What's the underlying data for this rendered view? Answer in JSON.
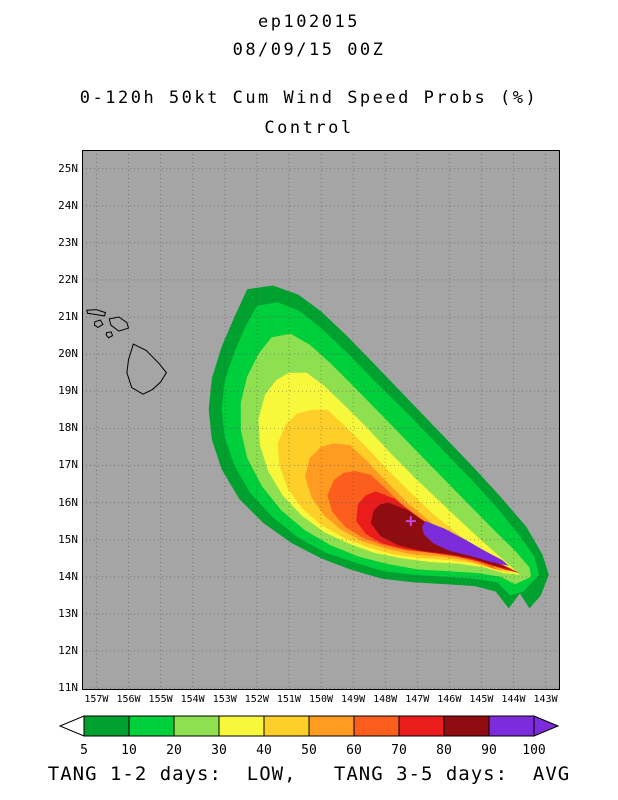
{
  "header": {
    "storm_id": "ep102015",
    "valid_time": "08/09/15 00Z",
    "title": "0-120h 50kt Cum Wind Speed Probs (%)",
    "member": "Control"
  },
  "footer": {
    "text": "TANG 1-2 days:  LOW,   TANG 3-5 days:  AVG"
  },
  "chart_data": {
    "type": "filled-contour-map",
    "title": "0-120h 50kt Cum Wind Speed Probs (%)",
    "subtitle": "Control",
    "storm_id": "ep102015",
    "valid_time": "08/09/15 00Z",
    "map_background": "#a5a5a5",
    "extent": {
      "lon_west": 157.45,
      "lon_east": 142.55,
      "lat_south": 10.95,
      "lat_north": 25.5
    },
    "grid": true,
    "lat_ticks": [
      [
        25,
        "25N"
      ],
      [
        24,
        "24N"
      ],
      [
        23,
        "23N"
      ],
      [
        22,
        "22N"
      ],
      [
        21,
        "21N"
      ],
      [
        20,
        "20N"
      ],
      [
        19,
        "19N"
      ],
      [
        18,
        "18N"
      ],
      [
        17,
        "17N"
      ],
      [
        16,
        "16N"
      ],
      [
        15,
        "15N"
      ],
      [
        14,
        "14N"
      ],
      [
        13,
        "13N"
      ],
      [
        12,
        "12N"
      ],
      [
        11,
        "11N"
      ]
    ],
    "lon_ticks": [
      [
        157,
        "157W"
      ],
      [
        156,
        "156W"
      ],
      [
        155,
        "155W"
      ],
      [
        154,
        "154W"
      ],
      [
        153,
        "153W"
      ],
      [
        152,
        "152W"
      ],
      [
        151,
        "151W"
      ],
      [
        150,
        "150W"
      ],
      [
        149,
        "149W"
      ],
      [
        148,
        "148W"
      ],
      [
        147,
        "147W"
      ],
      [
        146,
        "146W"
      ],
      [
        145,
        "145W"
      ],
      [
        144,
        "144W"
      ],
      [
        143,
        "143W"
      ]
    ],
    "levels": [
      5,
      10,
      20,
      30,
      40,
      50,
      60,
      70,
      80,
      90,
      100
    ],
    "colors": [
      "#00a12f",
      "#00cf3c",
      "#8ee051",
      "#f7f73b",
      "#ffcf29",
      "#ff9b21",
      "#fc5e1e",
      "#ea1c1c",
      "#8f0d10",
      "#7d2cdb"
    ],
    "underflow_color": "#ffffff",
    "contours": [
      {
        "level": 5,
        "points": [
          [
            152.3,
            21.75
          ],
          [
            151.5,
            21.85
          ],
          [
            150.7,
            21.6
          ],
          [
            150.0,
            21.15
          ],
          [
            149.2,
            20.5
          ],
          [
            148.3,
            19.7
          ],
          [
            147.3,
            18.8
          ],
          [
            146.3,
            17.9
          ],
          [
            145.3,
            17.0
          ],
          [
            144.4,
            16.15
          ],
          [
            143.6,
            15.35
          ],
          [
            143.1,
            14.6
          ],
          [
            142.9,
            14.05
          ],
          [
            143.15,
            13.5
          ],
          [
            143.5,
            13.15
          ],
          [
            143.8,
            13.55
          ],
          [
            144.15,
            13.15
          ],
          [
            144.55,
            13.6
          ],
          [
            145.2,
            13.75
          ],
          [
            146.1,
            13.8
          ],
          [
            147.1,
            13.85
          ],
          [
            148.1,
            13.95
          ],
          [
            149.1,
            14.2
          ],
          [
            150.0,
            14.5
          ],
          [
            150.9,
            14.9
          ],
          [
            151.8,
            15.45
          ],
          [
            152.55,
            16.1
          ],
          [
            153.1,
            16.9
          ],
          [
            153.4,
            17.7
          ],
          [
            153.5,
            18.5
          ],
          [
            153.4,
            19.35
          ],
          [
            153.1,
            20.2
          ],
          [
            152.7,
            21.0
          ]
        ]
      },
      {
        "level": 10,
        "points": [
          [
            152.0,
            21.3
          ],
          [
            151.35,
            21.4
          ],
          [
            150.65,
            21.15
          ],
          [
            150.0,
            20.7
          ],
          [
            149.2,
            20.05
          ],
          [
            148.3,
            19.25
          ],
          [
            147.3,
            18.4
          ],
          [
            146.3,
            17.5
          ],
          [
            145.35,
            16.65
          ],
          [
            144.5,
            15.85
          ],
          [
            143.8,
            15.1
          ],
          [
            143.35,
            14.55
          ],
          [
            143.2,
            14.05
          ],
          [
            143.7,
            13.6
          ],
          [
            144.1,
            13.5
          ],
          [
            144.5,
            13.85
          ],
          [
            145.2,
            13.95
          ],
          [
            146.1,
            14.0
          ],
          [
            147.1,
            14.05
          ],
          [
            148.05,
            14.15
          ],
          [
            149.0,
            14.4
          ],
          [
            149.85,
            14.65
          ],
          [
            150.7,
            15.05
          ],
          [
            151.5,
            15.6
          ],
          [
            152.2,
            16.25
          ],
          [
            152.7,
            17.0
          ],
          [
            153.0,
            17.75
          ],
          [
            153.1,
            18.5
          ],
          [
            153.0,
            19.3
          ],
          [
            152.7,
            20.05
          ],
          [
            152.35,
            20.75
          ]
        ]
      },
      {
        "level": 20,
        "points": [
          [
            151.55,
            20.45
          ],
          [
            150.95,
            20.55
          ],
          [
            150.35,
            20.25
          ],
          [
            149.7,
            19.75
          ],
          [
            148.95,
            19.1
          ],
          [
            148.1,
            18.35
          ],
          [
            147.2,
            17.55
          ],
          [
            146.3,
            16.75
          ],
          [
            145.45,
            16.0
          ],
          [
            144.65,
            15.3
          ],
          [
            143.95,
            14.7
          ],
          [
            143.5,
            14.25
          ],
          [
            143.45,
            14.0
          ],
          [
            143.95,
            13.8
          ],
          [
            144.4,
            14.0
          ],
          [
            145.1,
            14.1
          ],
          [
            146.0,
            14.15
          ],
          [
            147.0,
            14.2
          ],
          [
            147.95,
            14.35
          ],
          [
            148.85,
            14.55
          ],
          [
            149.7,
            14.85
          ],
          [
            150.5,
            15.25
          ],
          [
            151.25,
            15.8
          ],
          [
            151.85,
            16.45
          ],
          [
            152.3,
            17.2
          ],
          [
            152.5,
            17.95
          ],
          [
            152.5,
            18.7
          ],
          [
            152.3,
            19.4
          ],
          [
            151.95,
            20.0
          ]
        ]
      },
      {
        "level": 30,
        "points": [
          [
            151.0,
            19.5
          ],
          [
            150.45,
            19.5
          ],
          [
            149.9,
            19.15
          ],
          [
            149.3,
            18.65
          ],
          [
            148.6,
            18.05
          ],
          [
            147.85,
            17.35
          ],
          [
            147.05,
            16.65
          ],
          [
            146.2,
            15.95
          ],
          [
            145.4,
            15.3
          ],
          [
            144.7,
            14.75
          ],
          [
            144.1,
            14.3
          ],
          [
            143.8,
            14.05
          ],
          [
            144.3,
            14.1
          ],
          [
            144.9,
            14.25
          ],
          [
            145.7,
            14.35
          ],
          [
            146.6,
            14.4
          ],
          [
            147.5,
            14.5
          ],
          [
            148.35,
            14.65
          ],
          [
            149.15,
            14.9
          ],
          [
            149.9,
            15.2
          ],
          [
            150.6,
            15.65
          ],
          [
            151.2,
            16.2
          ],
          [
            151.65,
            16.85
          ],
          [
            151.9,
            17.55
          ],
          [
            151.95,
            18.25
          ],
          [
            151.75,
            18.9
          ],
          [
            151.4,
            19.3
          ]
        ]
      },
      {
        "level": 40,
        "points": [
          [
            150.3,
            18.5
          ],
          [
            149.8,
            18.5
          ],
          [
            149.3,
            18.1
          ],
          [
            148.7,
            17.6
          ],
          [
            148.0,
            16.95
          ],
          [
            147.25,
            16.3
          ],
          [
            146.45,
            15.65
          ],
          [
            145.65,
            15.1
          ],
          [
            144.95,
            14.65
          ],
          [
            144.35,
            14.3
          ],
          [
            144.1,
            14.1
          ],
          [
            144.6,
            14.2
          ],
          [
            145.2,
            14.35
          ],
          [
            146.0,
            14.45
          ],
          [
            146.9,
            14.5
          ],
          [
            147.75,
            14.6
          ],
          [
            148.55,
            14.8
          ],
          [
            149.3,
            15.05
          ],
          [
            150.0,
            15.4
          ],
          [
            150.6,
            15.85
          ],
          [
            151.05,
            16.4
          ],
          [
            151.3,
            17.0
          ],
          [
            151.35,
            17.6
          ],
          [
            151.1,
            18.1
          ],
          [
            150.75,
            18.4
          ]
        ]
      },
      {
        "level": 50,
        "points": [
          [
            149.6,
            17.6
          ],
          [
            149.1,
            17.55
          ],
          [
            148.6,
            17.15
          ],
          [
            148.0,
            16.6
          ],
          [
            147.3,
            16.0
          ],
          [
            146.55,
            15.45
          ],
          [
            145.8,
            14.95
          ],
          [
            145.1,
            14.6
          ],
          [
            144.55,
            14.35
          ],
          [
            144.35,
            14.15
          ],
          [
            144.9,
            14.3
          ],
          [
            145.5,
            14.45
          ],
          [
            146.3,
            14.55
          ],
          [
            147.15,
            14.6
          ],
          [
            147.95,
            14.75
          ],
          [
            148.7,
            14.95
          ],
          [
            149.35,
            15.25
          ],
          [
            149.9,
            15.65
          ],
          [
            150.3,
            16.15
          ],
          [
            150.5,
            16.7
          ],
          [
            150.35,
            17.2
          ],
          [
            150.0,
            17.5
          ]
        ]
      },
      {
        "level": 60,
        "points": [
          [
            148.95,
            16.85
          ],
          [
            148.45,
            16.75
          ],
          [
            147.95,
            16.35
          ],
          [
            147.3,
            15.8
          ],
          [
            146.6,
            15.3
          ],
          [
            145.9,
            14.9
          ],
          [
            145.25,
            14.6
          ],
          [
            144.75,
            14.4
          ],
          [
            144.55,
            14.2
          ],
          [
            145.1,
            14.4
          ],
          [
            145.7,
            14.55
          ],
          [
            146.5,
            14.65
          ],
          [
            147.3,
            14.7
          ],
          [
            148.05,
            14.85
          ],
          [
            148.7,
            15.05
          ],
          [
            149.25,
            15.35
          ],
          [
            149.65,
            15.75
          ],
          [
            149.8,
            16.2
          ],
          [
            149.6,
            16.6
          ],
          [
            149.3,
            16.8
          ]
        ]
      },
      {
        "level": 70,
        "points": [
          [
            148.3,
            16.3
          ],
          [
            147.7,
            16.1
          ],
          [
            147.1,
            15.7
          ],
          [
            146.4,
            15.25
          ],
          [
            145.7,
            14.9
          ],
          [
            145.0,
            14.6
          ],
          [
            144.4,
            14.35
          ],
          [
            143.8,
            14.1
          ],
          [
            144.3,
            14.2
          ],
          [
            145.0,
            14.4
          ],
          [
            145.8,
            14.55
          ],
          [
            146.6,
            14.65
          ],
          [
            147.4,
            14.75
          ],
          [
            148.1,
            14.9
          ],
          [
            148.6,
            15.15
          ],
          [
            148.9,
            15.5
          ],
          [
            148.85,
            15.95
          ],
          [
            148.6,
            16.2
          ]
        ]
      },
      {
        "level": 80,
        "points": [
          [
            147.9,
            16.0
          ],
          [
            147.3,
            15.8
          ],
          [
            146.7,
            15.45
          ],
          [
            146.0,
            15.05
          ],
          [
            145.3,
            14.7
          ],
          [
            144.7,
            14.45
          ],
          [
            144.1,
            14.2
          ],
          [
            144.6,
            14.3
          ],
          [
            145.3,
            14.5
          ],
          [
            146.1,
            14.62
          ],
          [
            146.9,
            14.7
          ],
          [
            147.6,
            14.85
          ],
          [
            148.15,
            15.1
          ],
          [
            148.45,
            15.45
          ],
          [
            148.35,
            15.8
          ],
          [
            148.15,
            15.95
          ]
        ]
      },
      {
        "level": 90,
        "points": [
          [
            146.75,
            15.5
          ],
          [
            146.15,
            15.3
          ],
          [
            145.5,
            15.0
          ],
          [
            144.9,
            14.7
          ],
          [
            144.35,
            14.45
          ],
          [
            144.15,
            14.3
          ],
          [
            144.7,
            14.4
          ],
          [
            145.3,
            14.55
          ],
          [
            146.0,
            14.7
          ],
          [
            146.5,
            14.9
          ],
          [
            146.8,
            15.15
          ],
          [
            146.85,
            15.35
          ]
        ]
      }
    ],
    "islands": [
      [
        [
          155.85,
          20.27
        ],
        [
          155.45,
          20.1
        ],
        [
          155.05,
          19.75
        ],
        [
          154.82,
          19.5
        ],
        [
          155.0,
          19.25
        ],
        [
          155.25,
          19.05
        ],
        [
          155.55,
          18.92
        ],
        [
          155.9,
          19.1
        ],
        [
          156.05,
          19.5
        ],
        [
          156.0,
          19.85
        ]
      ],
      [
        [
          156.6,
          20.95
        ],
        [
          156.3,
          21.0
        ],
        [
          156.05,
          20.85
        ],
        [
          156.0,
          20.7
        ],
        [
          156.3,
          20.62
        ],
        [
          156.55,
          20.78
        ]
      ],
      [
        [
          157.3,
          21.18
        ],
        [
          157.0,
          21.2
        ],
        [
          156.72,
          21.12
        ],
        [
          156.75,
          21.03
        ],
        [
          157.05,
          21.07
        ],
        [
          157.28,
          21.1
        ]
      ],
      [
        [
          157.05,
          20.87
        ],
        [
          156.88,
          20.92
        ],
        [
          156.8,
          20.8
        ],
        [
          156.95,
          20.72
        ],
        [
          157.06,
          20.78
        ]
      ],
      [
        [
          156.68,
          20.58
        ],
        [
          156.54,
          20.6
        ],
        [
          156.5,
          20.5
        ],
        [
          156.62,
          20.44
        ],
        [
          156.7,
          20.52
        ]
      ]
    ],
    "marker": {
      "lon_w": 147.2,
      "lat": 15.5,
      "glyph": "+",
      "color": "#c44ae0"
    }
  }
}
